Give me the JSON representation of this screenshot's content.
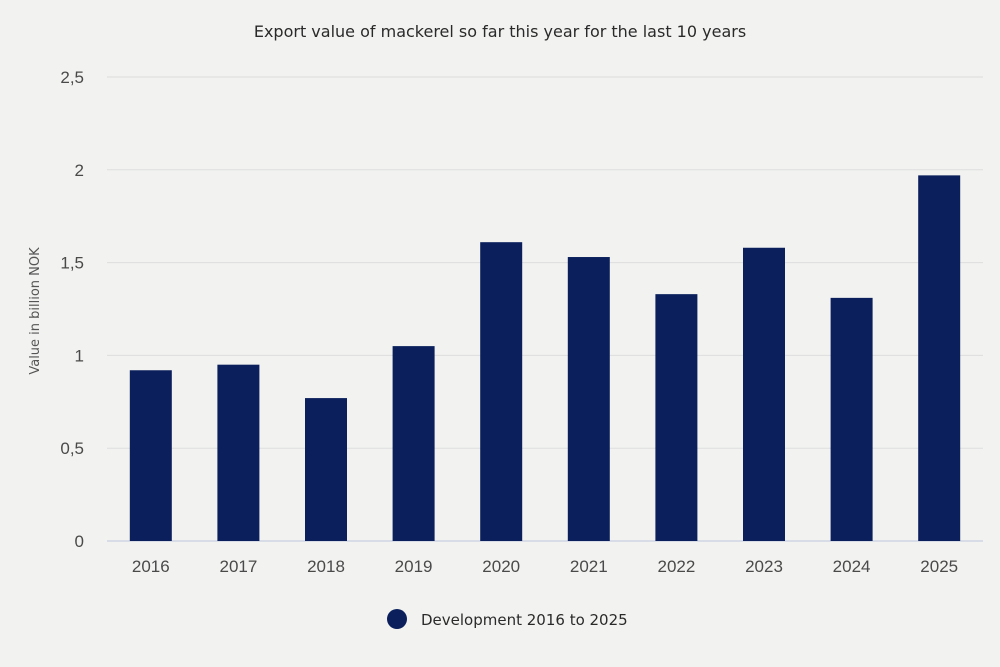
{
  "chart_data": {
    "type": "bar",
    "title": "Export value of mackerel so far this year for the last 10 years",
    "xlabel": "",
    "ylabel": "Value in billion NOK",
    "categories": [
      "2016",
      "2017",
      "2018",
      "2019",
      "2020",
      "2021",
      "2022",
      "2023",
      "2024",
      "2025"
    ],
    "series": [
      {
        "name": "Development 2016 to 2025",
        "values": [
          0.92,
          0.95,
          0.77,
          1.05,
          1.61,
          1.53,
          1.33,
          1.58,
          1.31,
          1.97
        ]
      }
    ],
    "ylim": [
      0,
      2.5
    ],
    "yticks": [
      0,
      0.5,
      1,
      1.5,
      2,
      2.5
    ],
    "ytick_labels": [
      "0",
      "0,5",
      "1",
      "1,5",
      "2",
      "2,5"
    ],
    "grid": true,
    "legend_position": "bottom-center",
    "colors": {
      "bar": "#0a1f5c",
      "background": "#f2f3f0"
    }
  }
}
